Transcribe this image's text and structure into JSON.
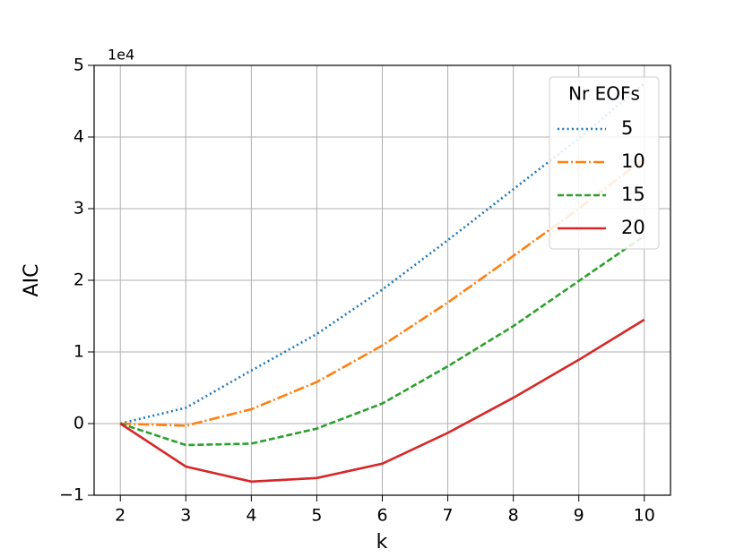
{
  "chart_data": {
    "type": "line",
    "x_label": "k",
    "y_label": "AIC",
    "y_offset_label": "1e4",
    "x": [
      2,
      3,
      4,
      5,
      6,
      7,
      8,
      9,
      10
    ],
    "series": [
      {
        "name": "5",
        "color": "#1f77b4",
        "dash": "2,3.3",
        "values": [
          0,
          0.22,
          0.74,
          1.25,
          1.87,
          2.56,
          3.27,
          3.98,
          4.75
        ]
      },
      {
        "name": "10",
        "color": "#ff7f0e",
        "dash": "12,3,2,3",
        "values": [
          0,
          -0.03,
          0.2,
          0.58,
          1.09,
          1.69,
          2.34,
          3.0,
          3.7
        ]
      },
      {
        "name": "15",
        "color": "#2ca02c",
        "dash": "7,3",
        "values": [
          0,
          -0.3,
          -0.28,
          -0.07,
          0.28,
          0.8,
          1.36,
          1.99,
          2.62
        ]
      },
      {
        "name": "20",
        "color": "#d62728",
        "dash": "",
        "values": [
          0,
          -0.6,
          -0.81,
          -0.76,
          -0.56,
          -0.13,
          0.36,
          0.89,
          1.45
        ]
      }
    ],
    "legend_title": "Nr EOFs",
    "legend": "upper right",
    "grid": true,
    "xlim": [
      1.6,
      10.4
    ],
    "xticks": [
      2,
      3,
      4,
      5,
      6,
      7,
      8,
      9,
      10
    ],
    "ylim": [
      -1,
      5
    ],
    "yticks": [
      {
        "value": -1,
        "label": "−1"
      },
      0,
      1,
      2,
      3,
      4,
      5
    ]
  }
}
